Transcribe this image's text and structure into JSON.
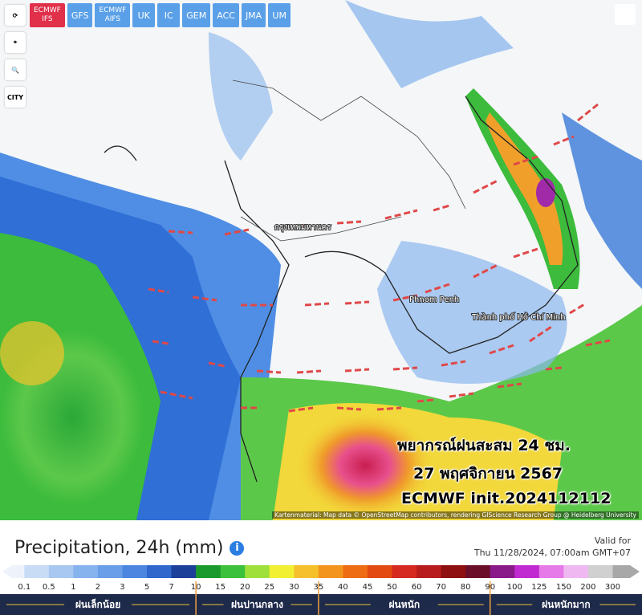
{
  "models": [
    "ECMWF IFS",
    "GFS",
    "ECMWF AIFS",
    "UK",
    "IC",
    "GEM",
    "ACC",
    "JMA",
    "UM"
  ],
  "tools": {
    "city": "CITY"
  },
  "map_labels": [
    "กรุงเทพมหานคร",
    "Phnom Penh",
    "Thành phố Hồ Chí Minh"
  ],
  "overlay": [
    "พยากรณ์ฝนสะสม 24 ชม.",
    "27 พฤศจิกายน 2567",
    "ECMWF init.2024112112"
  ],
  "attribution": "Kartenmaterial: Map data © OpenStreetMap contributors, rendering GIScience Research Group @ Heidelberg University",
  "panel": {
    "title": "Precipitation, 24h (mm)",
    "valid_label": "Valid for",
    "valid_time": "Thu 11/28/2024, 07:00am GMT+07"
  },
  "legend": {
    "ticks": [
      "0.1",
      "0.5",
      "1",
      "2",
      "3",
      "5",
      "7",
      "10",
      "15",
      "20",
      "25",
      "30",
      "35",
      "40",
      "45",
      "50",
      "60",
      "70",
      "80",
      "90",
      "100",
      "125",
      "150",
      "200",
      "300"
    ],
    "colors": [
      "#eef3fb",
      "#c9dcf5",
      "#a8c8f2",
      "#86b2ee",
      "#6a9ee8",
      "#4c86e0",
      "#2f67cc",
      "#1c3f99",
      "#1a9a2c",
      "#3cc13c",
      "#9fe03a",
      "#f2f032",
      "#f5c02c",
      "#f3941e",
      "#ee6c14",
      "#e34a12",
      "#d62a20",
      "#b81c1c",
      "#8e1010",
      "#6a0e2a",
      "#8a1a8a",
      "#c02ad0",
      "#e67ae8",
      "#f0b8f0",
      "#d0d0d0",
      "#a8a8a8"
    ],
    "categories": [
      "ฝนเล็กน้อย",
      "ฝนปานกลาง",
      "ฝนหนัก",
      "ฝนหนักมาก"
    ]
  }
}
